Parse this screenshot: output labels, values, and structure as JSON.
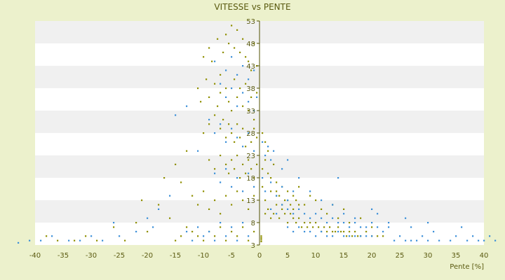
{
  "chart_data": {
    "type": "scatter",
    "title": "VITESSE vs PENTE",
    "xlabel": "Pente [%]",
    "ylabel": "",
    "xlim": [
      -40,
      40
    ],
    "ylim": [
      3,
      53
    ],
    "grid": true,
    "x_ticks": [
      "-40",
      "-35",
      "-30",
      "-25",
      "-20",
      "-15",
      "-10",
      "-5",
      "0",
      "5",
      "10",
      "15",
      "20",
      "25",
      "30",
      "35",
      "40"
    ],
    "y_ticks": [
      "3",
      "8",
      "13",
      "18",
      "23",
      "28",
      "33",
      "38",
      "43",
      "48",
      "53"
    ],
    "colors": {
      "background": "#ecf1cc",
      "band_light": "#ffffff",
      "band_dark": "#f0f0f0",
      "axis_text": "#5a5a10",
      "series_olive": "#8f8f00",
      "series_blue": "#3a8fd8",
      "zero_line": "#505000"
    },
    "series": [
      {
        "color": "#8f8f00",
        "points": [
          [
            -10,
            45
          ],
          [
            -9,
            47
          ],
          [
            -8.5,
            44
          ],
          [
            -7.5,
            49
          ],
          [
            -7,
            41
          ],
          [
            -6.5,
            46
          ],
          [
            -6,
            50
          ],
          [
            -5.5,
            48
          ],
          [
            -5,
            52
          ],
          [
            -4.5,
            47
          ],
          [
            -4,
            51
          ],
          [
            -3.5,
            46
          ],
          [
            -3,
            49
          ],
          [
            -2.5,
            45
          ],
          [
            -2,
            44
          ],
          [
            -1.5,
            42
          ],
          [
            -1,
            48
          ],
          [
            -0.5,
            43
          ],
          [
            -11,
            38
          ],
          [
            -10.5,
            35
          ],
          [
            -9.5,
            40
          ],
          [
            -9,
            36
          ],
          [
            -8,
            39
          ],
          [
            -7.5,
            34
          ],
          [
            -7,
            37
          ],
          [
            -6,
            38
          ],
          [
            -5.5,
            35
          ],
          [
            -5,
            33
          ],
          [
            -4.5,
            40
          ],
          [
            -4,
            36
          ],
          [
            -3.5,
            38
          ],
          [
            -3,
            34
          ],
          [
            -2.5,
            39
          ],
          [
            -2,
            33
          ],
          [
            -1.5,
            36
          ],
          [
            -1,
            31
          ],
          [
            -0.5,
            37
          ],
          [
            -10,
            28
          ],
          [
            -9,
            30
          ],
          [
            -8,
            32
          ],
          [
            -7,
            29
          ],
          [
            -6.5,
            31
          ],
          [
            -6,
            27
          ],
          [
            -5.5,
            30
          ],
          [
            -5,
            28
          ],
          [
            -4.5,
            26
          ],
          [
            -4,
            30
          ],
          [
            -3.5,
            27
          ],
          [
            -3,
            29
          ],
          [
            -2.5,
            25
          ],
          [
            -2,
            28
          ],
          [
            -1.5,
            26
          ],
          [
            -1,
            29
          ],
          [
            -0.5,
            27
          ],
          [
            0.5,
            28
          ],
          [
            1,
            26
          ],
          [
            1.5,
            24
          ],
          [
            -9,
            22
          ],
          [
            -8,
            20
          ],
          [
            -7,
            23
          ],
          [
            -6,
            21
          ],
          [
            -5.5,
            19
          ],
          [
            -5,
            22
          ],
          [
            -4.5,
            20
          ],
          [
            -4,
            23
          ],
          [
            -3.5,
            18
          ],
          [
            -3,
            21
          ],
          [
            -2.5,
            19
          ],
          [
            -2,
            22
          ],
          [
            -1.5,
            20
          ],
          [
            -1,
            18
          ],
          [
            -0.5,
            21
          ],
          [
            0.5,
            20
          ],
          [
            1,
            22
          ],
          [
            1.5,
            19
          ],
          [
            2,
            18
          ],
          [
            2.5,
            21
          ],
          [
            3,
            17
          ],
          [
            -12,
            14
          ],
          [
            -11,
            12
          ],
          [
            -10,
            15
          ],
          [
            -9,
            11
          ],
          [
            -8,
            13
          ],
          [
            -7,
            10
          ],
          [
            -6,
            14
          ],
          [
            -5,
            12
          ],
          [
            -4,
            15
          ],
          [
            -3,
            13
          ],
          [
            -2,
            11
          ],
          [
            -1,
            14
          ],
          [
            0.5,
            16
          ],
          [
            1,
            13
          ],
          [
            2,
            15
          ],
          [
            3,
            14
          ],
          [
            4,
            12
          ],
          [
            5,
            13
          ],
          [
            6,
            11
          ],
          [
            7,
            12
          ],
          [
            -17,
            18
          ],
          [
            -15,
            21
          ],
          [
            -14,
            17
          ],
          [
            -13,
            24
          ],
          [
            -16,
            9
          ],
          [
            -18,
            12
          ],
          [
            -21,
            13
          ],
          [
            -22,
            8
          ],
          [
            -20,
            6
          ],
          [
            -24,
            4
          ],
          [
            -26,
            7
          ],
          [
            -29,
            4
          ],
          [
            -31,
            5
          ],
          [
            -33,
            4
          ],
          [
            -36,
            4
          ],
          [
            -38,
            5
          ],
          [
            -12,
            6
          ],
          [
            -11,
            5
          ],
          [
            -10,
            4
          ],
          [
            -9,
            6
          ],
          [
            -8,
            5
          ],
          [
            -7,
            7
          ],
          [
            -6,
            4
          ],
          [
            -5,
            6
          ],
          [
            -4,
            5
          ],
          [
            -3,
            7
          ],
          [
            -2,
            4
          ],
          [
            -1,
            6
          ],
          [
            -14,
            5
          ],
          [
            -15,
            4
          ],
          [
            -13,
            7
          ],
          [
            1,
            10
          ],
          [
            1.5,
            11
          ],
          [
            2,
            9
          ],
          [
            2.5,
            10
          ],
          [
            3,
            12
          ],
          [
            3.5,
            9
          ],
          [
            4,
            11
          ],
          [
            4.5,
            10
          ],
          [
            5,
            8
          ],
          [
            5.5,
            10
          ],
          [
            6,
            9
          ],
          [
            6.5,
            8
          ],
          [
            7,
            9
          ],
          [
            7.5,
            7
          ],
          [
            8,
            8
          ],
          [
            8.5,
            7
          ],
          [
            9,
            8
          ],
          [
            9.5,
            7
          ],
          [
            10,
            8
          ],
          [
            10.5,
            7
          ],
          [
            11,
            6
          ],
          [
            11.5,
            7
          ],
          [
            12,
            6
          ],
          [
            12.5,
            7
          ],
          [
            13,
            6
          ],
          [
            13.5,
            6
          ],
          [
            14,
            7
          ],
          [
            14.5,
            6
          ],
          [
            15,
            6
          ],
          [
            15.5,
            5
          ],
          [
            16,
            6
          ],
          [
            16.5,
            5
          ],
          [
            17,
            6
          ],
          [
            17.5,
            5
          ],
          [
            18,
            5
          ],
          [
            19,
            6
          ],
          [
            20,
            5
          ],
          [
            21,
            5
          ],
          [
            22,
            5
          ],
          [
            3,
            15
          ],
          [
            3.5,
            14
          ],
          [
            4,
            16
          ],
          [
            4.5,
            13
          ],
          [
            5,
            15
          ],
          [
            5.5,
            12
          ],
          [
            6,
            14
          ],
          [
            6.5,
            13
          ],
          [
            7,
            16
          ],
          [
            8,
            12
          ],
          [
            9,
            14
          ],
          [
            10,
            13
          ],
          [
            11,
            11
          ],
          [
            12,
            10
          ],
          [
            13,
            12
          ],
          [
            14,
            9
          ],
          [
            15,
            11
          ],
          [
            16,
            8
          ],
          [
            18,
            9
          ],
          [
            20,
            7
          ],
          [
            0.3,
            3.8
          ],
          [
            0.3,
            4.2
          ],
          [
            0.3,
            4.6
          ],
          [
            0.3,
            5
          ]
        ]
      },
      {
        "color": "#3a8fd8",
        "points": [
          [
            -8,
            44
          ],
          [
            -6,
            42
          ],
          [
            -5,
            45
          ],
          [
            -4,
            41
          ],
          [
            -3,
            43
          ],
          [
            -2,
            40
          ],
          [
            -1,
            42
          ],
          [
            -7,
            39
          ],
          [
            -6,
            36
          ],
          [
            -5,
            38
          ],
          [
            -4,
            34
          ],
          [
            -3,
            37
          ],
          [
            -2,
            35
          ],
          [
            -1,
            33
          ],
          [
            -0.5,
            36
          ],
          [
            -9,
            31
          ],
          [
            -8,
            28
          ],
          [
            -7,
            30
          ],
          [
            -6,
            26
          ],
          [
            -5,
            29
          ],
          [
            -4,
            27
          ],
          [
            -3,
            25
          ],
          [
            -2,
            28
          ],
          [
            -1,
            24
          ],
          [
            0.5,
            26
          ],
          [
            1,
            23
          ],
          [
            1.5,
            25
          ],
          [
            2,
            22
          ],
          [
            2.5,
            24
          ],
          [
            -8,
            19
          ],
          [
            -7,
            17
          ],
          [
            -6,
            20
          ],
          [
            -5,
            16
          ],
          [
            -4,
            18
          ],
          [
            -3,
            15
          ],
          [
            -2,
            19
          ],
          [
            -1,
            16
          ],
          [
            0.5,
            18
          ],
          [
            1,
            15
          ],
          [
            2,
            17
          ],
          [
            3,
            14
          ],
          [
            4,
            16
          ],
          [
            5,
            13
          ],
          [
            6,
            15
          ],
          [
            -15,
            32
          ],
          [
            -13,
            34
          ],
          [
            -11,
            24
          ],
          [
            -16,
            14
          ],
          [
            -18,
            11
          ],
          [
            -20,
            9
          ],
          [
            -19,
            7
          ],
          [
            -22,
            6
          ],
          [
            -25,
            5
          ],
          [
            -26,
            8
          ],
          [
            -28,
            4
          ],
          [
            -30,
            5
          ],
          [
            -32,
            4
          ],
          [
            -34,
            4
          ],
          [
            -37,
            5
          ],
          [
            -39,
            4
          ],
          [
            -41,
            4
          ],
          [
            -43,
            3.5
          ],
          [
            -12,
            4
          ],
          [
            -10,
            5
          ],
          [
            -8,
            4
          ],
          [
            -6,
            5
          ],
          [
            -4,
            4
          ],
          [
            -2,
            5
          ],
          [
            -13,
            6
          ],
          [
            -11,
            7
          ],
          [
            -9,
            6
          ],
          [
            -7,
            8
          ],
          [
            -5,
            7
          ],
          [
            -3,
            8
          ],
          [
            2,
            11
          ],
          [
            3,
            10
          ],
          [
            4,
            12
          ],
          [
            5,
            11
          ],
          [
            6,
            10
          ],
          [
            7,
            11
          ],
          [
            8,
            10
          ],
          [
            9,
            9
          ],
          [
            10,
            10
          ],
          [
            11,
            9
          ],
          [
            12,
            8
          ],
          [
            13,
            9
          ],
          [
            14,
            8
          ],
          [
            15,
            8
          ],
          [
            16,
            7
          ],
          [
            17,
            8
          ],
          [
            18,
            7
          ],
          [
            19,
            7
          ],
          [
            20,
            8
          ],
          [
            21,
            7
          ],
          [
            22,
            6
          ],
          [
            23,
            7
          ],
          [
            24,
            4
          ],
          [
            25,
            5
          ],
          [
            26,
            4
          ],
          [
            27,
            4
          ],
          [
            28,
            4
          ],
          [
            29,
            5
          ],
          [
            30,
            4
          ],
          [
            31,
            6
          ],
          [
            32,
            4
          ],
          [
            34,
            4
          ],
          [
            35,
            5
          ],
          [
            36,
            7
          ],
          [
            37,
            4
          ],
          [
            38,
            5
          ],
          [
            39,
            4
          ],
          [
            40,
            4
          ],
          [
            41,
            5
          ],
          [
            42,
            4
          ],
          [
            5,
            7
          ],
          [
            6,
            6
          ],
          [
            7,
            7
          ],
          [
            8,
            6
          ],
          [
            9,
            6
          ],
          [
            10,
            5
          ],
          [
            11,
            6
          ],
          [
            12,
            5
          ],
          [
            13,
            5
          ],
          [
            14,
            6
          ],
          [
            15,
            5
          ],
          [
            16,
            5
          ],
          [
            17,
            5
          ],
          [
            18,
            5
          ],
          [
            19,
            5
          ],
          [
            20,
            5
          ],
          [
            4,
            20
          ],
          [
            5,
            22
          ],
          [
            7,
            18
          ],
          [
            9,
            15
          ],
          [
            11,
            13
          ],
          [
            13,
            12
          ],
          [
            14,
            18
          ],
          [
            15,
            10
          ],
          [
            17,
            9
          ],
          [
            20,
            11
          ],
          [
            21,
            10
          ],
          [
            23,
            8
          ],
          [
            26,
            9
          ],
          [
            27,
            7
          ],
          [
            30,
            8
          ]
        ]
      }
    ]
  }
}
